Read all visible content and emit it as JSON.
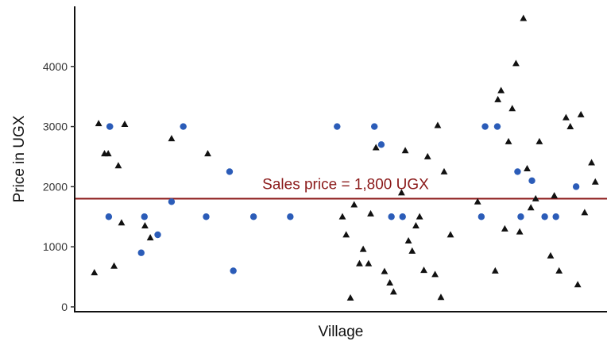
{
  "chart_data": {
    "type": "scatter",
    "xlabel": "Village",
    "ylabel": "Price in UGX",
    "xlim": [
      0,
      100
    ],
    "ylim": [
      -80,
      5000
    ],
    "yticks": [
      0,
      1000,
      2000,
      3000,
      4000
    ],
    "grid": false,
    "legend": "none",
    "reference_line": {
      "y": 1800,
      "label": "Sales price = 1,800 UGX",
      "color": "#8b1a1a"
    },
    "series": [
      {
        "marker": "circle",
        "color": "#2b5cb8",
        "points": [
          {
            "x": 6.6,
            "y": 3000
          },
          {
            "x": 6.6,
            "y": 3000
          },
          {
            "x": 6.4,
            "y": 1500
          },
          {
            "x": 12.5,
            "y": 900
          },
          {
            "x": 13.1,
            "y": 1500
          },
          {
            "x": 15.6,
            "y": 1200
          },
          {
            "x": 18.2,
            "y": 1750
          },
          {
            "x": 20.4,
            "y": 3000
          },
          {
            "x": 24.7,
            "y": 1500
          },
          {
            "x": 29.1,
            "y": 2250
          },
          {
            "x": 29.8,
            "y": 600
          },
          {
            "x": 33.6,
            "y": 1500
          },
          {
            "x": 40.5,
            "y": 1500
          },
          {
            "x": 49.3,
            "y": 3000
          },
          {
            "x": 56.3,
            "y": 3000
          },
          {
            "x": 57.6,
            "y": 2700
          },
          {
            "x": 59.5,
            "y": 1500
          },
          {
            "x": 61.6,
            "y": 1500
          },
          {
            "x": 76.4,
            "y": 1500
          },
          {
            "x": 77.1,
            "y": 3000
          },
          {
            "x": 79.4,
            "y": 3000
          },
          {
            "x": 83.2,
            "y": 2250
          },
          {
            "x": 83.8,
            "y": 1500
          },
          {
            "x": 85.9,
            "y": 2100
          },
          {
            "x": 88.3,
            "y": 1500
          },
          {
            "x": 90.4,
            "y": 1500
          },
          {
            "x": 94.2,
            "y": 2000
          }
        ]
      },
      {
        "marker": "triangle",
        "color": "#111111",
        "points": [
          {
            "x": 4.5,
            "y": 3050
          },
          {
            "x": 5.6,
            "y": 2550
          },
          {
            "x": 6.3,
            "y": 2550
          },
          {
            "x": 3.7,
            "y": 570
          },
          {
            "x": 7.4,
            "y": 680
          },
          {
            "x": 8.2,
            "y": 2350
          },
          {
            "x": 8.8,
            "y": 1400
          },
          {
            "x": 9.4,
            "y": 3040
          },
          {
            "x": 13.2,
            "y": 1350
          },
          {
            "x": 14.2,
            "y": 1150
          },
          {
            "x": 18.2,
            "y": 2800
          },
          {
            "x": 25.0,
            "y": 2550
          },
          {
            "x": 50.3,
            "y": 1500
          },
          {
            "x": 51.0,
            "y": 1200
          },
          {
            "x": 51.8,
            "y": 150
          },
          {
            "x": 52.5,
            "y": 1700
          },
          {
            "x": 53.5,
            "y": 720
          },
          {
            "x": 54.2,
            "y": 960
          },
          {
            "x": 55.2,
            "y": 720
          },
          {
            "x": 55.6,
            "y": 1550
          },
          {
            "x": 56.6,
            "y": 2650
          },
          {
            "x": 58.2,
            "y": 590
          },
          {
            "x": 59.2,
            "y": 400
          },
          {
            "x": 59.9,
            "y": 250
          },
          {
            "x": 61.4,
            "y": 1900
          },
          {
            "x": 62.1,
            "y": 2600
          },
          {
            "x": 62.7,
            "y": 1100
          },
          {
            "x": 63.4,
            "y": 930
          },
          {
            "x": 64.1,
            "y": 1350
          },
          {
            "x": 64.8,
            "y": 1500
          },
          {
            "x": 65.6,
            "y": 610
          },
          {
            "x": 66.3,
            "y": 2500
          },
          {
            "x": 67.7,
            "y": 540
          },
          {
            "x": 68.2,
            "y": 3020
          },
          {
            "x": 68.8,
            "y": 160
          },
          {
            "x": 69.4,
            "y": 2250
          },
          {
            "x": 70.6,
            "y": 1200
          },
          {
            "x": 75.7,
            "y": 1750
          },
          {
            "x": 79.0,
            "y": 600
          },
          {
            "x": 80.1,
            "y": 3600
          },
          {
            "x": 80.8,
            "y": 1300
          },
          {
            "x": 81.5,
            "y": 2750
          },
          {
            "x": 82.2,
            "y": 3300
          },
          {
            "x": 82.9,
            "y": 4050
          },
          {
            "x": 83.6,
            "y": 1250
          },
          {
            "x": 84.3,
            "y": 4800
          },
          {
            "x": 85.0,
            "y": 2300
          },
          {
            "x": 85.7,
            "y": 1650
          },
          {
            "x": 86.6,
            "y": 1800
          },
          {
            "x": 87.3,
            "y": 2750
          },
          {
            "x": 89.4,
            "y": 850
          },
          {
            "x": 90.1,
            "y": 1850
          },
          {
            "x": 91.0,
            "y": 600
          },
          {
            "x": 92.3,
            "y": 3150
          },
          {
            "x": 93.1,
            "y": 3000
          },
          {
            "x": 94.5,
            "y": 370
          },
          {
            "x": 95.1,
            "y": 3200
          },
          {
            "x": 95.8,
            "y": 1570
          },
          {
            "x": 97.1,
            "y": 2400
          },
          {
            "x": 97.8,
            "y": 2080
          },
          {
            "x": 79.5,
            "y": 3450
          }
        ]
      }
    ]
  }
}
